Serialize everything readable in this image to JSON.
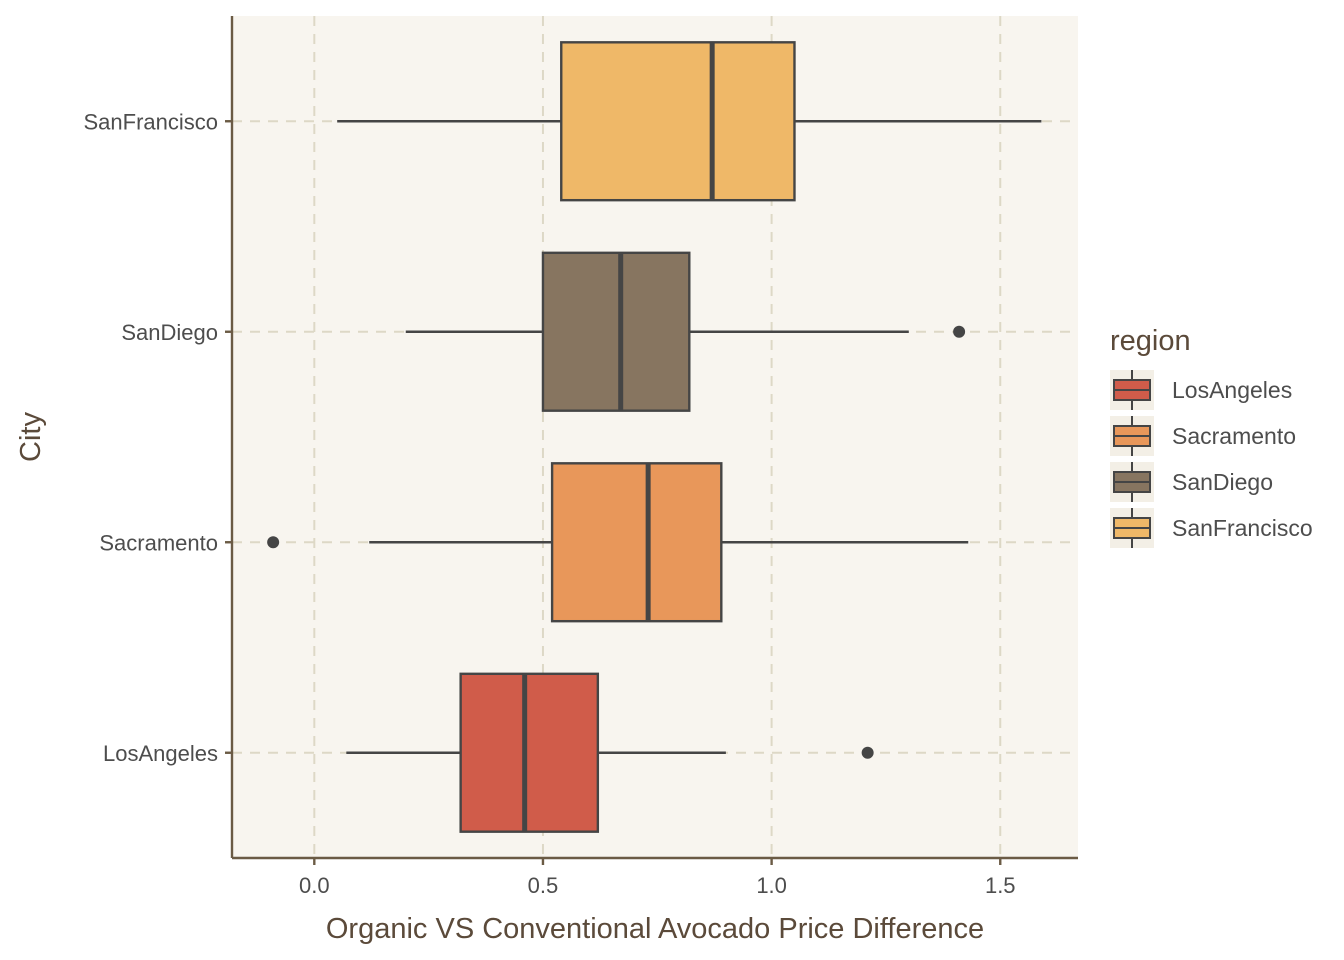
{
  "chart_data": {
    "type": "boxplot",
    "orientation": "horizontal",
    "title": "",
    "xlabel": "Organic VS Conventional Avocado Price Difference",
    "ylabel": "City",
    "xlim": [
      -0.18,
      1.67
    ],
    "x_ticks": [
      0.0,
      0.5,
      1.0,
      1.5
    ],
    "x_tick_labels": [
      "0.0",
      "0.5",
      "1.0",
      "1.5"
    ],
    "categories": [
      "LosAngeles",
      "Sacramento",
      "SanDiego",
      "SanFrancisco"
    ],
    "series": [
      {
        "name": "LosAngeles",
        "color": "#D05C4A",
        "whisker_low": 0.07,
        "q1": 0.32,
        "median": 0.46,
        "q3": 0.62,
        "whisker_high": 0.9,
        "outliers": [
          1.21
        ]
      },
      {
        "name": "Sacramento",
        "color": "#E8975A",
        "whisker_low": 0.12,
        "q1": 0.52,
        "median": 0.73,
        "q3": 0.89,
        "whisker_high": 1.43,
        "outliers": [
          -0.09
        ]
      },
      {
        "name": "SanDiego",
        "color": "#877560",
        "whisker_low": 0.2,
        "q1": 0.5,
        "median": 0.67,
        "q3": 0.82,
        "whisker_high": 1.3,
        "outliers": [
          1.41
        ]
      },
      {
        "name": "SanFrancisco",
        "color": "#EFB868",
        "whisker_low": 0.05,
        "q1": 0.54,
        "median": 0.87,
        "q3": 1.05,
        "whisker_high": 1.59,
        "outliers": []
      }
    ],
    "legend": {
      "title": "region",
      "position": "right",
      "entries": [
        "LosAngeles",
        "Sacramento",
        "SanDiego",
        "SanFrancisco"
      ]
    },
    "grid": true,
    "colors": {
      "panel_background": "#F8F5EF",
      "grid": "#DDD8C6",
      "axis_line": "#6B5B45",
      "box_outline": "#454545"
    }
  }
}
